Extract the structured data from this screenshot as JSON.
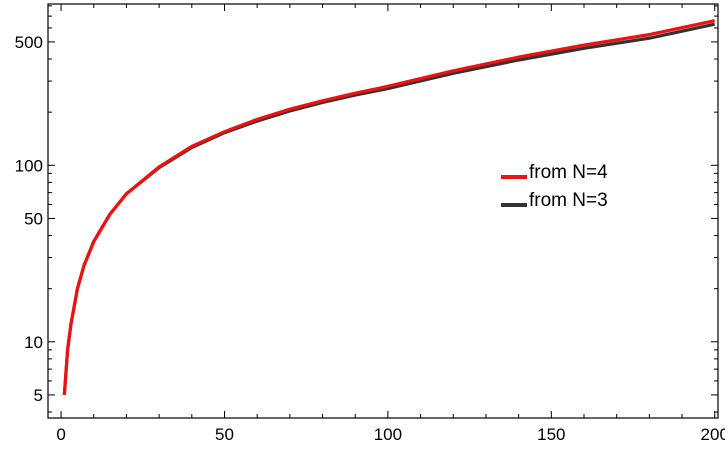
{
  "chart_data": {
    "type": "line",
    "title": "",
    "xlabel": "",
    "ylabel": "",
    "xlim": [
      -4,
      201
    ],
    "ylim": [
      3.7,
      820
    ],
    "yscale": "log",
    "x_ticks": [
      0,
      50,
      100,
      150,
      200
    ],
    "y_ticks": [
      5,
      10,
      50,
      100,
      500
    ],
    "grid": false,
    "legend": {
      "placement": "center-right"
    },
    "series": [
      {
        "name": "from N=4",
        "color": "#ee1111",
        "x": [
          1,
          2,
          3,
          5,
          7,
          10,
          15,
          20,
          30,
          40,
          50,
          60,
          70,
          80,
          90,
          100,
          120,
          140,
          160,
          180,
          200
        ],
        "y": [
          5,
          9,
          12.5,
          20,
          27,
          37,
          53,
          69,
          98,
          128,
          155,
          182,
          208,
          232,
          256,
          280,
          343,
          410,
          480,
          550,
          660
        ]
      },
      {
        "name": "from N=3",
        "color": "#333333",
        "x": [
          1,
          2,
          3,
          5,
          7,
          10,
          15,
          20,
          30,
          40,
          50,
          60,
          70,
          80,
          90,
          100,
          120,
          140,
          160,
          180,
          200
        ],
        "y": [
          5,
          9,
          12.5,
          20,
          27,
          37,
          53,
          69,
          97,
          126,
          153,
          178,
          203,
          227,
          250,
          272,
          332,
          395,
          460,
          525,
          630
        ]
      }
    ]
  }
}
